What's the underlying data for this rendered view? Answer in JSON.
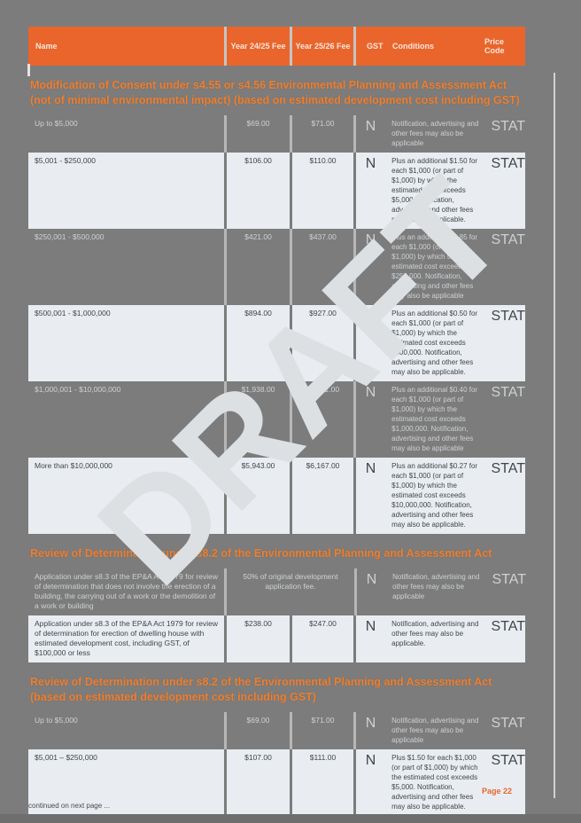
{
  "document": {
    "watermark": "DRAFT",
    "footer": {
      "page_label": "Page 22",
      "continuation_note": "continued on next page ..."
    },
    "colors": {
      "page_bg": "#7C7C7C",
      "accent_orange": "#E9652C",
      "section_title_orange": "#EF7F2F",
      "row_light_bg": "#E9EDF2",
      "row_dark_text": "#CDD1D4",
      "row_light_text": "#3F464A",
      "watermark_color": "#DCE0E3"
    }
  },
  "table": {
    "headers": {
      "name": "Name",
      "fee_24_25": "Year 24/25 Fee",
      "fee_25_26": "Year 25/26 Fee",
      "gst": "GST",
      "conditions": "Conditions",
      "price_code": "Price Code"
    },
    "sections": [
      {
        "title": "Modification of Consent under s4.55 or s4.56 Environmental Planning and Assessment Act (not of minimal environmental impact) (based on estimated development cost including GST)",
        "rows": [
          {
            "shade": "dark",
            "name": "Up to $5,000",
            "fee_24_25": "$69.00",
            "fee_25_26": "$71.00",
            "gst": "N",
            "conditions": "Notification, advertising and other fees may also be applicable",
            "price_code": "STAT"
          },
          {
            "shade": "light",
            "name": "$5,001 - $250,000",
            "fee_24_25": "$106.00",
            "fee_25_26": "$110.00",
            "gst": "N",
            "conditions": "Plus an additional $1.50 for each $1,000 (or part of $1,000) by which the estimated cost exceeds $5,000. Notification, advertising and other fees may also be applicable.",
            "price_code": "STAT"
          },
          {
            "shade": "dark",
            "name": "$250,001 - $500,000",
            "fee_24_25": "$421.00",
            "fee_25_26": "$437.00",
            "gst": "N",
            "conditions": "Plus an additional $0.85 for each $1,000 (or part of $1,000) by which the estimated cost exceeds $250,000. Notification, advertising and other fees may also be applicable",
            "price_code": "STAT"
          },
          {
            "shade": "light",
            "name": "$500,001 - $1,000,000",
            "fee_24_25": "$894.00",
            "fee_25_26": "$927.00",
            "gst": "N",
            "conditions": "Plus an additional $0.50 for each $1,000 (or part of $1,000) by which the estimated cost exceeds $500,000. Notification, advertising and other fees may also be applicable.",
            "price_code": "STAT"
          },
          {
            "shade": "dark",
            "name": "$1,000,001 - $10,000,000",
            "fee_24_25": "$1,938.00",
            "fee_25_26": "$2,011.00",
            "gst": "N",
            "conditions": "Plus an additional $0.40 for each $1,000 (or part of $1,000) by which the estimated cost exceeds $1,000,000. Notification, advertising and other fees may also be applicable",
            "price_code": "STAT"
          },
          {
            "shade": "light",
            "name": "More than $10,000,000",
            "fee_24_25": "$5,943.00",
            "fee_25_26": "$6,167.00",
            "gst": "N",
            "conditions": "Plus an additional $0.27 for each $1,000 (or part of $1,000) by which the estimated cost exceeds $10,000,000. Notification, advertising and other fees may also be applicable.",
            "price_code": "STAT"
          }
        ]
      },
      {
        "title": "Review of Determination under s8.2 of the Environmental Planning and Assessment Act",
        "rows": [
          {
            "shade": "dark",
            "name": "Application under s8.3 of the EP&A Act 1979 for review of determination that does not involve the erection of a building, the carrying out of a work or the demolition of a work or building",
            "fee_merged": "50% of original development application fee.",
            "gst": "N",
            "conditions": "Notification, advertising and other fees may also be applicable",
            "price_code": "STAT"
          },
          {
            "shade": "light",
            "name": "Application under s8.3 of the EP&A Act 1979 for review of determination for erection of dwelling house with estimated development cost, including GST, of $100,000 or less",
            "fee_24_25": "$238.00",
            "fee_25_26": "$247.00",
            "gst": "N",
            "conditions": "Notification, advertising and other fees may also be applicable.",
            "price_code": "STAT"
          }
        ]
      },
      {
        "title": "Review of Determination under s8.2 of the Environmental Planning and Assessment Act (based on estimated development cost including GST)",
        "rows": [
          {
            "shade": "dark",
            "name": "Up to $5,000",
            "fee_24_25": "$69.00",
            "fee_25_26": "$71.00",
            "gst": "N",
            "conditions": "Notification, advertising and other fees may also be applicable",
            "price_code": "STAT"
          },
          {
            "shade": "light",
            "name": "$5,001 – $250,000",
            "fee_24_25": "$107.00",
            "fee_25_26": "$111.00",
            "gst": "N",
            "conditions": "Plus $1.50 for each $1,000 (or part of $1,000) by which the estimated cost exceeds $5,000. Notification, advertising and other fees may also be applicable.",
            "price_code": "STAT"
          }
        ]
      }
    ]
  }
}
